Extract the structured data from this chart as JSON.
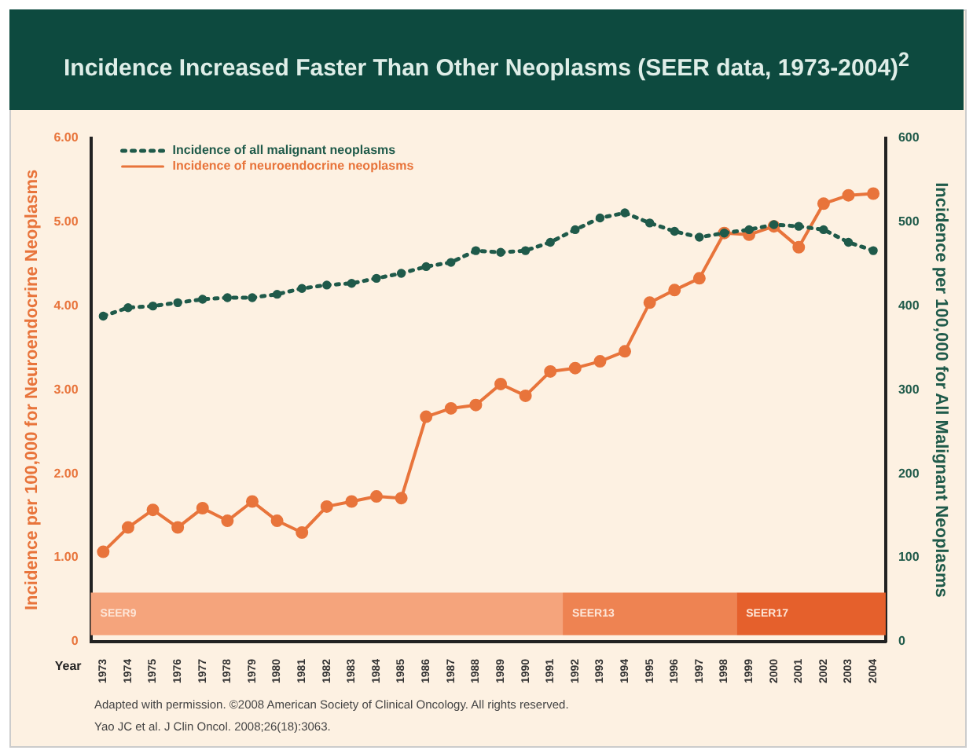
{
  "chart_data": {
    "type": "line",
    "title": "Incidence Increased Faster Than Other Neoplasms (SEER data, 1973-2004)$^{2}$",
    "xlabel": "Year",
    "ylabel": "Incidence per 100,000 for Neuroendocrine Neoplasms",
    "y2label": "Incidence per 100,000 for All Malignant Neoplasms",
    "categories": [
      "1973",
      "1974",
      "1975",
      "1976",
      "1977",
      "1978",
      "1979",
      "1980",
      "1981",
      "1982",
      "1983",
      "1984",
      "1985",
      "1986",
      "1987",
      "1988",
      "1989",
      "1990",
      "1991",
      "1992",
      "1993",
      "1994",
      "1995",
      "1996",
      "1997",
      "1998",
      "1999",
      "2000",
      "2001",
      "2002",
      "2003",
      "2004"
    ],
    "series": [
      {
        "name": "Incidence of all malignant neoplasms",
        "color": "#1f5a4a",
        "axis": "y2",
        "line_style": "dotted",
        "values": [
          388,
          398,
          400,
          404,
          408,
          410,
          410,
          414,
          421,
          425,
          427,
          433,
          439,
          447,
          452,
          466,
          464,
          466,
          476,
          491,
          505,
          511,
          499,
          489,
          482,
          487,
          491,
          497,
          495,
          491,
          476,
          466
        ]
      },
      {
        "name": "Incidence of neuroendocrine neoplasms",
        "color": "#e8743b",
        "axis": "y",
        "line_style": "solid",
        "values": [
          1.07,
          1.36,
          1.57,
          1.36,
          1.59,
          1.44,
          1.67,
          1.44,
          1.3,
          1.61,
          1.67,
          1.73,
          1.71,
          2.68,
          2.78,
          2.82,
          3.07,
          2.93,
          3.22,
          3.26,
          3.34,
          3.46,
          4.04,
          4.19,
          4.33,
          4.87,
          4.85,
          4.95,
          4.7,
          5.22,
          5.32,
          5.34
        ]
      }
    ],
    "ylim": [
      0,
      6
    ],
    "yticks": [
      0,
      {
        "value": 1,
        "label": "1.00"
      },
      {
        "value": 2,
        "label": "2.00"
      },
      {
        "value": 3,
        "label": "3.00"
      },
      {
        "value": 4,
        "label": "4.00"
      },
      {
        "value": 5,
        "label": "5.00"
      },
      {
        "value": 6,
        "label": "6.00"
      }
    ],
    "y2lim": [
      0,
      600
    ],
    "y2ticks": [
      0,
      100,
      200,
      300,
      400,
      500,
      600
    ],
    "bands": [
      {
        "axis": "x",
        "from": "1973",
        "to": "1991",
        "label": "SEER9",
        "color": "#f5a47c"
      },
      {
        "axis": "x",
        "from": "1992",
        "to": "1998",
        "label": "SEER13",
        "color": "#ee8352"
      },
      {
        "axis": "x",
        "from": "1999",
        "to": "2004",
        "label": "SEER17",
        "color": "#e5602c"
      }
    ],
    "annotations": [
      "Adapted with permission. ©2008 American Society of Clinical Oncology. All rights reserved.",
      "Yao JC et al. J Clin Oncol. 2008;26(18):3063."
    ],
    "grid": false,
    "legend": "top left",
    "marker": "circle"
  }
}
